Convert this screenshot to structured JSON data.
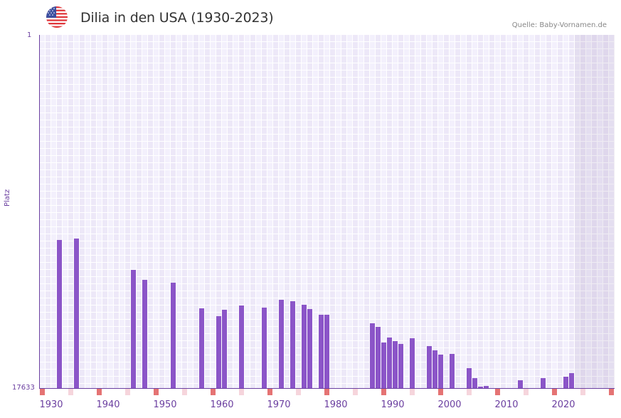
{
  "header": {
    "flag_icon": "us-flag-icon",
    "title": "Dilia in den USA (1930-2023)",
    "source": "Quelle: Baby-Vornamen.de"
  },
  "colors": {
    "bar": "#8b55c8",
    "axis": "#6b3fa0",
    "decade_marker": "#e57373",
    "half_decade_marker": "#f6d5dc",
    "grid_a": "#f3f0fc",
    "grid_b": "#ede8f8"
  },
  "chart_data": {
    "type": "bar",
    "title": "Dilia in den USA (1930-2023)",
    "xlabel": "",
    "ylabel": "Platz",
    "y_scale": "log-reversed",
    "ylim": [
      17633,
      1
    ],
    "y_ticks": [
      "1",
      "17633"
    ],
    "x_ticks": [
      "1930",
      "1940",
      "1950",
      "1960",
      "1970",
      "1980",
      "1990",
      "2000",
      "2010",
      "2020"
    ],
    "x_range": [
      1930,
      2023
    ],
    "grid": true,
    "legend": null,
    "points": [
      {
        "year": 1933,
        "rank": 290
      },
      {
        "year": 1936,
        "rank": 279
      },
      {
        "year": 1946,
        "rank": 664
      },
      {
        "year": 1948,
        "rank": 876
      },
      {
        "year": 1953,
        "rank": 948
      },
      {
        "year": 1958,
        "rank": 1931
      },
      {
        "year": 1961,
        "rank": 2399
      },
      {
        "year": 1962,
        "rank": 2009
      },
      {
        "year": 1965,
        "rank": 1783
      },
      {
        "year": 1969,
        "rank": 1892
      },
      {
        "year": 1972,
        "rank": 1524
      },
      {
        "year": 1974,
        "rank": 1585
      },
      {
        "year": 1976,
        "rank": 1749
      },
      {
        "year": 1977,
        "rank": 1969
      },
      {
        "year": 1979,
        "rank": 2306
      },
      {
        "year": 1980,
        "rank": 2306
      },
      {
        "year": 1988,
        "rank": 2924
      },
      {
        "year": 1989,
        "rank": 3228
      },
      {
        "year": 1990,
        "rank": 4981
      },
      {
        "year": 1991,
        "rank": 4337
      },
      {
        "year": 1992,
        "rank": 4786
      },
      {
        "year": 1993,
        "rank": 5185
      },
      {
        "year": 1995,
        "rank": 4426
      },
      {
        "year": 1998,
        "rank": 5500
      },
      {
        "year": 1999,
        "rank": 6194
      },
      {
        "year": 2000,
        "rank": 6966
      },
      {
        "year": 2002,
        "rank": 6835
      },
      {
        "year": 2005,
        "rank": 10147
      },
      {
        "year": 2006,
        "rank": 13373
      },
      {
        "year": 2007,
        "rank": 16943
      },
      {
        "year": 2008,
        "rank": 16600
      },
      {
        "year": 2014,
        "rank": 14180
      },
      {
        "year": 2018,
        "rank": 13373
      },
      {
        "year": 2022,
        "rank": 12850
      },
      {
        "year": 2023,
        "rank": 11650
      }
    ]
  }
}
